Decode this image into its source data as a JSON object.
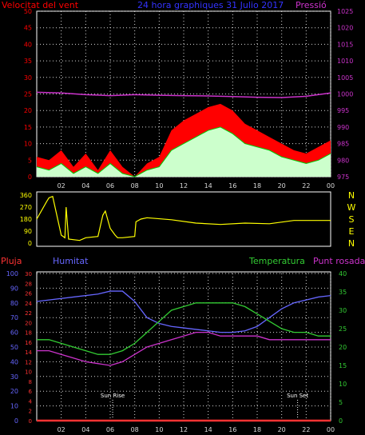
{
  "colors": {
    "wind": "#ff0000",
    "gust_fill": "#ccffcc",
    "avg_line": "#00cc00",
    "pressure": "#cc33cc",
    "grid": "#d8d8d8",
    "left_axis": "#ff0000",
    "right_axis_top": "#cc33cc",
    "direction": "#ffff00",
    "direction_axis": "#ffff00",
    "humidity": "#6666ff",
    "rain": "#ff3333",
    "temperature": "#33cc33",
    "dewpoint": "#cc33cc",
    "sun": "#ffffff",
    "title": "#3333ff"
  },
  "chart_data": [
    {
      "type": "area",
      "title": "24 hora graphiques  31 Julio 2017",
      "ylabel": "Velocitat del vent",
      "y2label": "Pressió",
      "ylim": [
        0,
        50
      ],
      "yticks": [
        0,
        5,
        10,
        15,
        20,
        25,
        30,
        35,
        40,
        45,
        50
      ],
      "y2lim": [
        975,
        1025
      ],
      "y2ticks": [
        975,
        980,
        985,
        990,
        995,
        1000,
        1005,
        1010,
        1015,
        1020,
        1025
      ],
      "xlim": [
        1,
        25
      ],
      "xticks": [
        "02",
        "04",
        "06",
        "08",
        "10",
        "12",
        "14",
        "16",
        "18",
        "20",
        "22",
        "00"
      ],
      "grid": true,
      "series": [
        {
          "name": "gust",
          "x": [
            1,
            2,
            3,
            4,
            5,
            6,
            7,
            8,
            9,
            10,
            11,
            12,
            13,
            14,
            15,
            16,
            17,
            18,
            19,
            20,
            21,
            22,
            23,
            24,
            25
          ],
          "values": [
            6,
            5,
            8,
            3,
            7,
            2,
            8,
            3,
            0,
            4,
            6,
            14,
            17,
            19,
            21,
            22,
            20,
            16,
            14,
            12,
            10,
            8,
            7,
            9,
            11
          ]
        },
        {
          "name": "average",
          "x": [
            1,
            2,
            3,
            4,
            5,
            6,
            7,
            8,
            9,
            10,
            11,
            12,
            13,
            14,
            15,
            16,
            17,
            18,
            19,
            20,
            21,
            22,
            23,
            24,
            25
          ],
          "values": [
            3,
            2,
            4,
            1,
            3,
            1,
            4,
            1,
            0,
            2,
            3,
            8,
            10,
            12,
            14,
            15,
            13,
            10,
            9,
            8,
            6,
            5,
            4,
            5,
            7
          ]
        },
        {
          "name": "pressure",
          "x": [
            1,
            3,
            5,
            7,
            9,
            11,
            13,
            15,
            17,
            19,
            21,
            23,
            25
          ],
          "values": [
            1000.5,
            1000.3,
            999.8,
            999.5,
            999.8,
            999.6,
            999.5,
            999.4,
            999.2,
            999.0,
            998.9,
            999.3,
            1000.3
          ]
        }
      ]
    },
    {
      "type": "line",
      "ylim": [
        0,
        360
      ],
      "yticks": [
        0,
        90,
        180,
        270,
        360
      ],
      "directions": [
        "N",
        "W",
        "S",
        "E",
        "N"
      ],
      "xlim": [
        1,
        25
      ],
      "series": [
        {
          "name": "direction",
          "x": [
            1,
            1.8,
            2,
            2.3,
            3,
            3.3,
            3.4,
            3.6,
            4.5,
            5,
            6,
            6.4,
            6.6,
            7,
            7.4,
            7.6,
            8,
            9,
            9.1,
            9.5,
            10,
            12,
            14,
            16,
            18,
            20,
            22,
            25
          ],
          "values": [
            180,
            310,
            340,
            350,
            60,
            40,
            270,
            30,
            20,
            40,
            50,
            210,
            240,
            110,
            60,
            40,
            40,
            50,
            160,
            180,
            190,
            175,
            150,
            140,
            150,
            145,
            170,
            170
          ]
        }
      ]
    },
    {
      "type": "line",
      "ylabel_left_outer": "Pluja",
      "ylabel_left": "Humitat",
      "ylabel_right": "Temperatura",
      "ylabel_right_outer": "Punt rosada",
      "rain_ylim": [
        0,
        30
      ],
      "rain_ticks": [
        0,
        2,
        4,
        6,
        8,
        10,
        12,
        14,
        16,
        18,
        20,
        22,
        24,
        26,
        28,
        30
      ],
      "hum_ylim": [
        0,
        100
      ],
      "hum_ticks": [
        0,
        10,
        20,
        30,
        40,
        50,
        60,
        70,
        80,
        90,
        100
      ],
      "temp_ylim": [
        0,
        40
      ],
      "temp_ticks": [
        0,
        5,
        10,
        15,
        20,
        25,
        30,
        35,
        40
      ],
      "xlim": [
        1,
        25
      ],
      "xticks": [
        "02",
        "04",
        "06",
        "08",
        "10",
        "12",
        "14",
        "16",
        "18",
        "20",
        "22",
        "00"
      ],
      "grid": true,
      "annotations": [
        {
          "text": "Sun Rise",
          "x": 7.2
        },
        {
          "text": "Sun Set",
          "x": 22.3
        }
      ],
      "series": [
        {
          "name": "Humitat",
          "axis": "hum",
          "x": [
            1,
            2,
            4,
            6,
            7,
            8,
            9,
            10,
            11,
            12,
            13,
            14,
            15,
            16,
            17,
            18,
            19,
            20,
            21,
            22,
            23,
            24,
            25
          ],
          "values": [
            81,
            82,
            84,
            86,
            88,
            88,
            81,
            70,
            66,
            64,
            63,
            62,
            61,
            60,
            60,
            61,
            64,
            70,
            76,
            80,
            82,
            84,
            85
          ]
        },
        {
          "name": "Temperatura",
          "axis": "temp",
          "x": [
            1,
            2,
            3,
            4,
            5,
            6,
            7,
            8,
            9,
            10,
            11,
            12,
            13,
            14,
            15,
            16,
            17,
            18,
            19,
            20,
            21,
            22,
            23,
            24,
            25
          ],
          "values": [
            22,
            22,
            21,
            20,
            19,
            18,
            18,
            19,
            21,
            24,
            27,
            30,
            31,
            32,
            32,
            32,
            32,
            31,
            29,
            27,
            25,
            24,
            24,
            23,
            23
          ]
        },
        {
          "name": "Punt rosada",
          "axis": "temp",
          "x": [
            1,
            2,
            3,
            4,
            5,
            6,
            7,
            8,
            9,
            10,
            11,
            12,
            13,
            14,
            15,
            16,
            17,
            18,
            19,
            20,
            21,
            22,
            23,
            24,
            25
          ],
          "values": [
            19,
            19,
            18,
            17,
            16,
            15.5,
            15,
            16,
            18,
            20,
            21,
            22,
            23,
            24,
            24,
            23,
            23,
            23,
            23,
            22,
            22,
            22,
            22,
            22,
            22
          ]
        },
        {
          "name": "Pluja",
          "axis": "rain",
          "x": [
            1,
            25
          ],
          "values": [
            0,
            0
          ]
        }
      ]
    }
  ]
}
